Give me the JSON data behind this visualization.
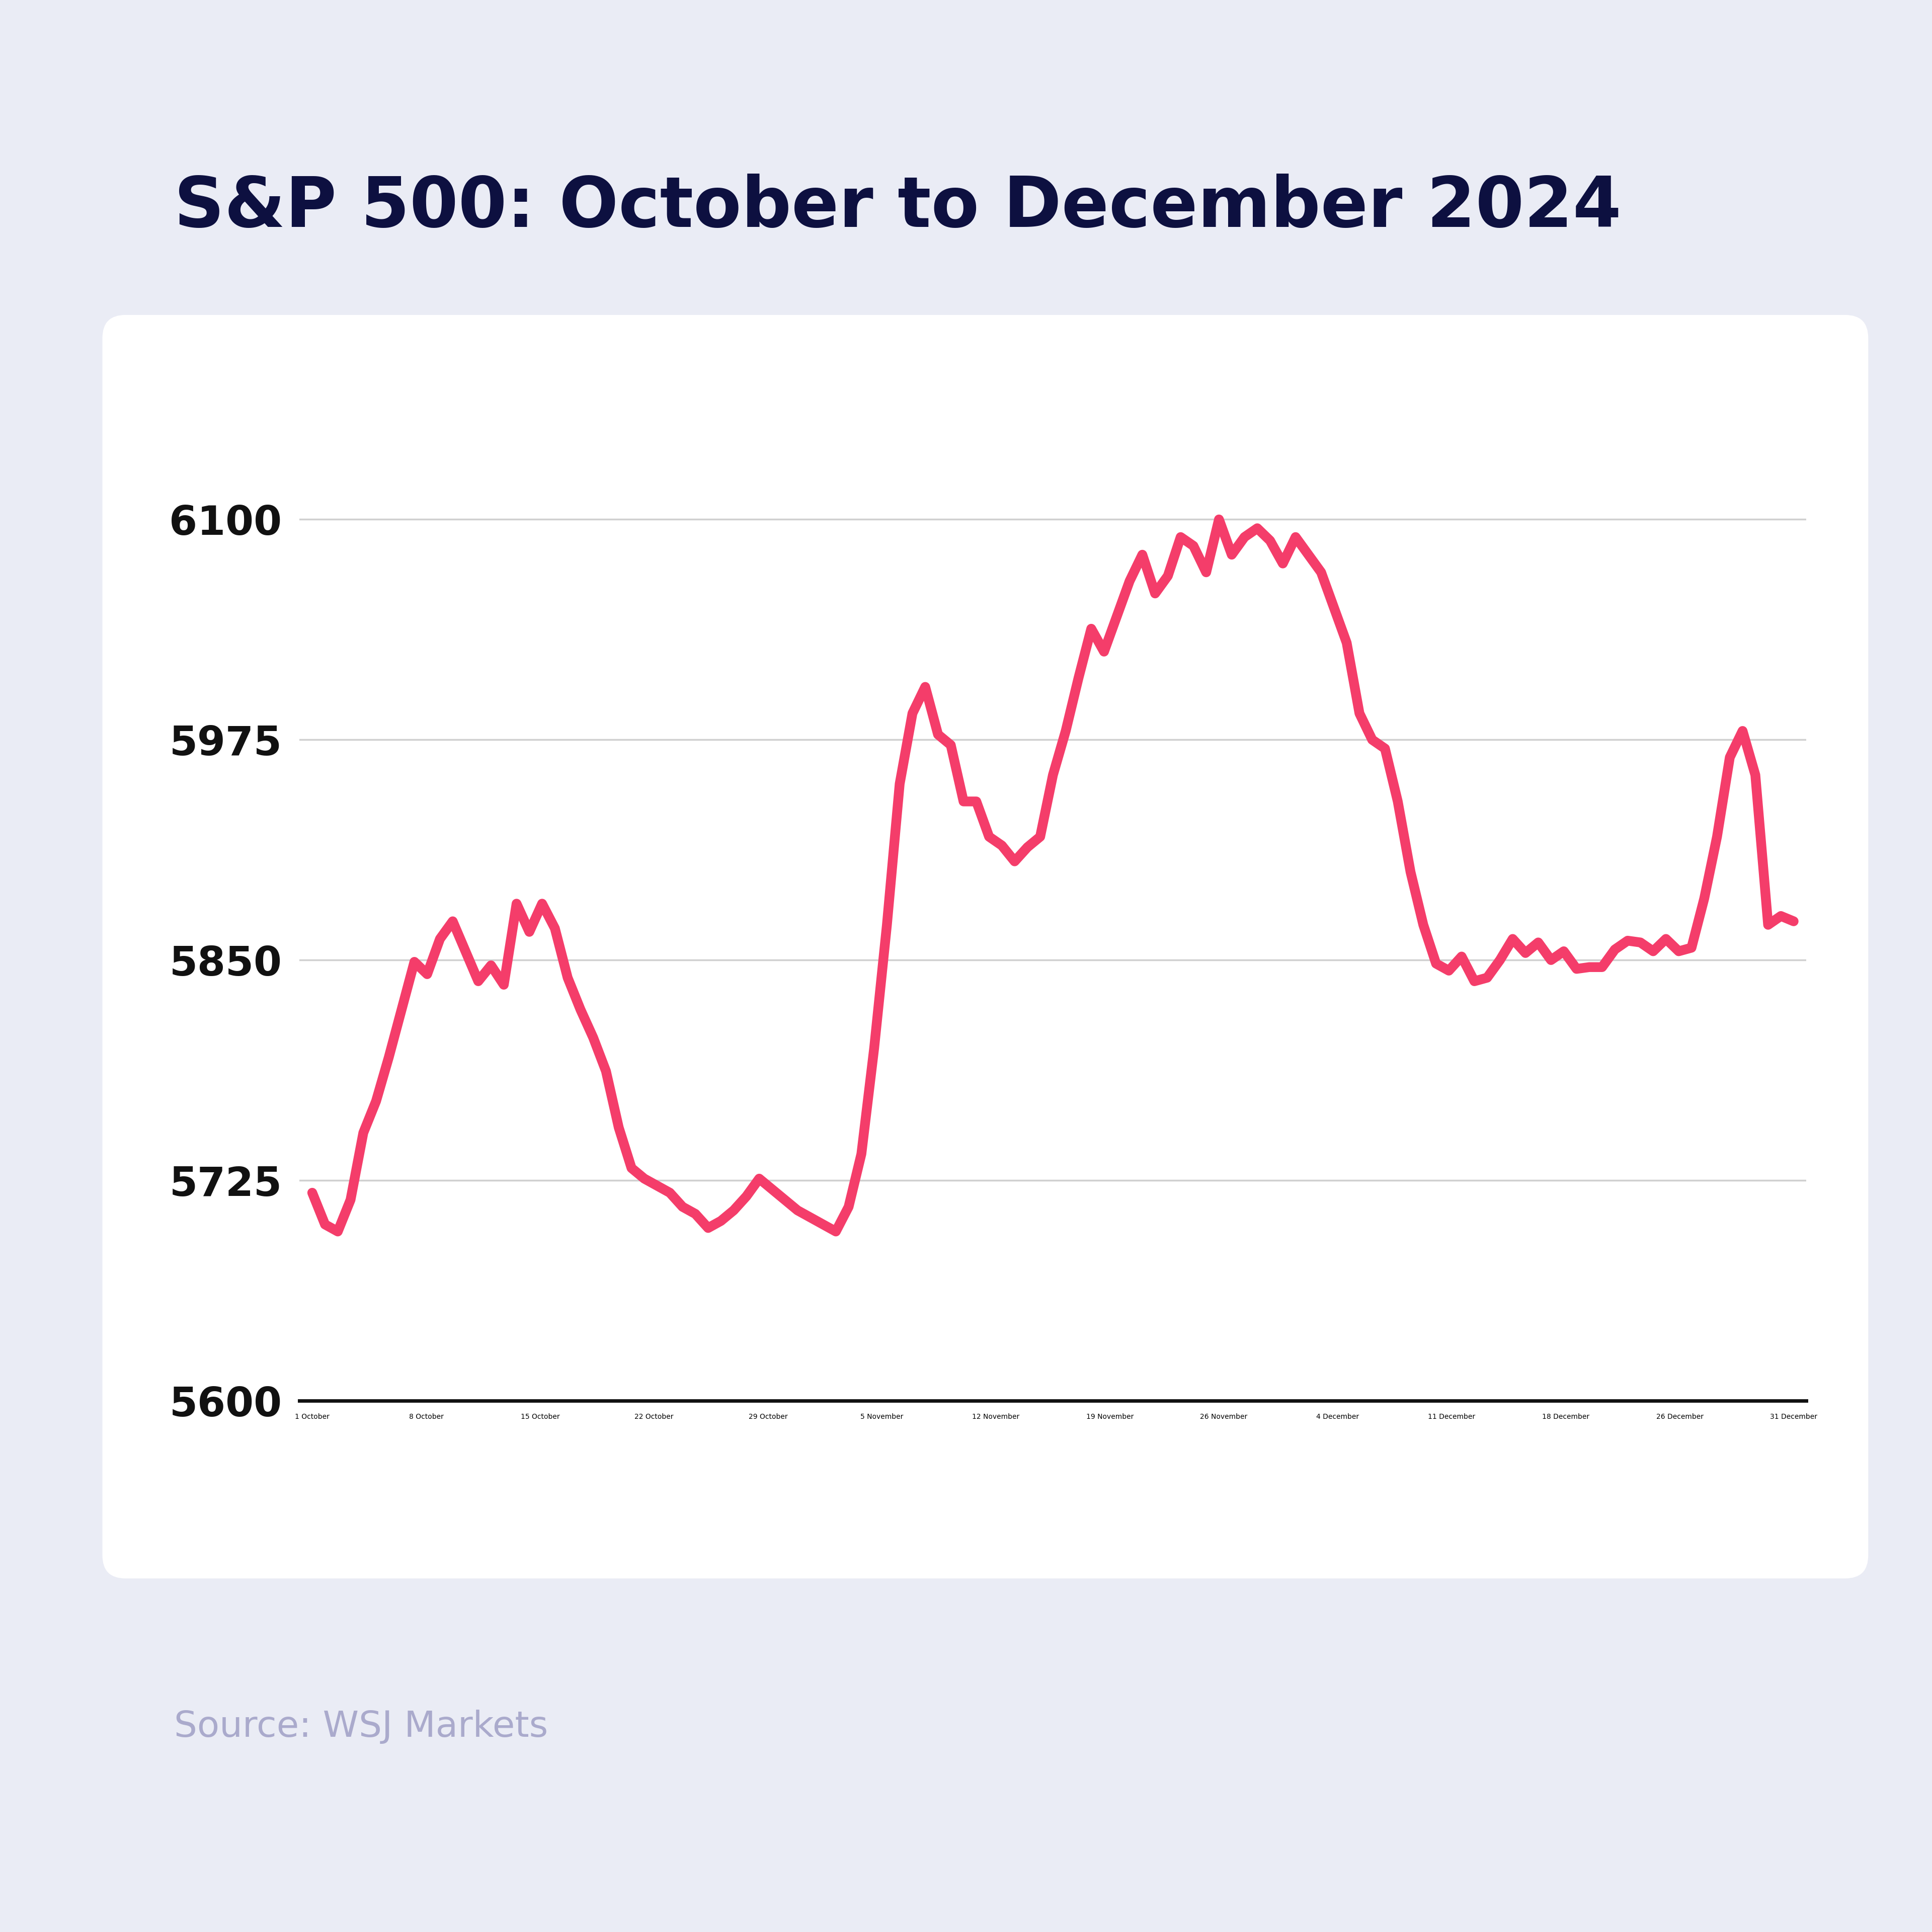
{
  "title": "S&P 500: October to December 2024",
  "source": "Source: WSJ Markets",
  "background_color": "#eaecf5",
  "panel_color": "#ffffff",
  "line_color": "#f43d6a",
  "title_color": "#0d1040",
  "source_color": "#aaaacc",
  "tick_label_color": "#111111",
  "grid_color": "#d0d0d0",
  "line_width": 14,
  "ylim": [
    5600,
    6170
  ],
  "yticks": [
    5600,
    5725,
    5850,
    5975,
    6100
  ],
  "x_labels": [
    "1 October",
    "8 October",
    "15 October",
    "22 October",
    "29 October",
    "5 November",
    "12 November",
    "19 November",
    "26 November",
    "4 December",
    "11 December",
    "18 December",
    "26 December",
    "31 December"
  ],
  "values": [
    5718,
    5700,
    5696,
    5714,
    5752,
    5770,
    5795,
    5822,
    5849,
    5842,
    5862,
    5872,
    5855,
    5838,
    5847,
    5836,
    5882,
    5866,
    5882,
    5868,
    5840,
    5822,
    5806,
    5787,
    5755,
    5732,
    5726,
    5722,
    5718,
    5710,
    5706,
    5698,
    5702,
    5708,
    5716,
    5726,
    5720,
    5714,
    5708,
    5704,
    5700,
    5696,
    5710,
    5740,
    5800,
    5870,
    5950,
    5990,
    6005,
    5978,
    5972,
    5940,
    5940,
    5920,
    5915,
    5906,
    5914,
    5920,
    5955,
    5980,
    6010,
    6038,
    6025,
    6045,
    6065,
    6080,
    6058,
    6068,
    6090,
    6085,
    6070,
    6100,
    6080,
    6090,
    6095,
    6088,
    6075,
    6090,
    6080,
    6070,
    6050,
    6030,
    5990,
    5975,
    5970,
    5940,
    5900,
    5870,
    5848,
    5844,
    5852,
    5838,
    5840,
    5850,
    5862,
    5854,
    5860,
    5850,
    5855,
    5845,
    5846,
    5846,
    5856,
    5861,
    5860,
    5855,
    5862,
    5855,
    5857,
    5885,
    5920,
    5965,
    5980,
    5955,
    5870,
    5875,
    5872
  ]
}
